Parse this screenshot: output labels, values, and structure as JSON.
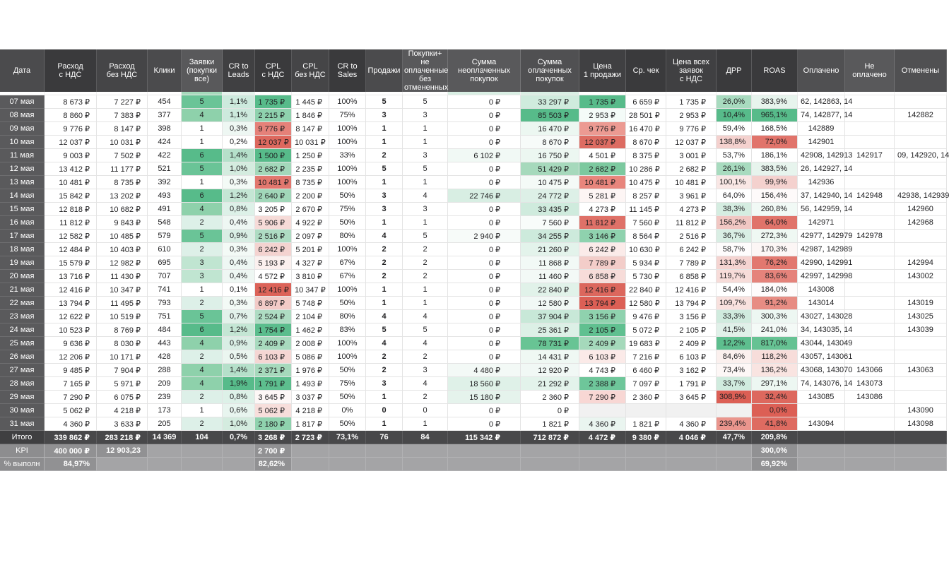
{
  "columns": [
    {
      "id": "date",
      "label": "Дата",
      "width": 63,
      "hbg": "#4b4b4d",
      "align": "c"
    },
    {
      "id": "exp_vat",
      "label": "Расход\nс НДС",
      "width": 74,
      "hbg": "#3a3a3c",
      "align": "r",
      "pad": "md"
    },
    {
      "id": "exp_novat",
      "label": "Расход\nбез НДС",
      "width": 72,
      "hbg": "#454547",
      "align": "r",
      "pad": "md"
    },
    {
      "id": "clicks",
      "label": "Клики",
      "width": 48,
      "hbg": "#4b4b4d",
      "align": "c"
    },
    {
      "id": "leads",
      "label": "Заявки\n(покупки\nвсе)",
      "width": 58,
      "hbg": "#59595b",
      "align": "c"
    },
    {
      "id": "cr_leads",
      "label": "CR to\nLeads",
      "width": 46,
      "hbg": "#404042",
      "align": "c"
    },
    {
      "id": "cpl_vat",
      "label": "CPL\nс НДС",
      "width": 52,
      "hbg": "#3a3a3c",
      "align": "r",
      "pad": "md"
    },
    {
      "id": "cpl_novat",
      "label": "CPL\nбез НДС",
      "width": 53,
      "hbg": "#454547",
      "align": "r",
      "pad": "md"
    },
    {
      "id": "cr_sales",
      "label": "CR to\nSales",
      "width": 52,
      "hbg": "#3a3a3c",
      "align": "c"
    },
    {
      "id": "sales",
      "label": "Продажи",
      "width": 52,
      "hbg": "#4b4b4d",
      "align": "c",
      "bold": true
    },
    {
      "id": "purchases",
      "label": "Покупки+ не\nоплаченные\nбез\nотмененных",
      "width": 64,
      "hbg": "#59595b",
      "align": "c"
    },
    {
      "id": "sum_unpaid",
      "label": "Сумма\nнеоплаченных\nпокупок",
      "width": 103,
      "hbg": "#59595b",
      "align": "r",
      "pad": "xl"
    },
    {
      "id": "sum_paid",
      "label": "Сумма\nоплаченных\nпокупок",
      "width": 83,
      "hbg": "#505052",
      "align": "r",
      "pad": "lg"
    },
    {
      "id": "price_one",
      "label": "Цена\n1 продажи",
      "width": 66,
      "hbg": "#404042",
      "align": "r",
      "pad": "lg"
    },
    {
      "id": "avg_check",
      "label": "Ср. чек",
      "width": 57,
      "hbg": "#3a3a3c",
      "align": "r",
      "pad": "md"
    },
    {
      "id": "price_all",
      "label": "Цена всех\nзаявок\nс НДС",
      "width": 71,
      "hbg": "#404042",
      "align": "r",
      "pad": "lg"
    },
    {
      "id": "drr",
      "label": "ДРР",
      "width": 50,
      "hbg": "#3a3a3c",
      "align": "r",
      "pad": "md"
    },
    {
      "id": "roas",
      "label": "ROAS",
      "width": 65,
      "hbg": "#3a3a3c",
      "align": "r",
      "pad": "lg"
    },
    {
      "id": "paid",
      "label": "Оплачено",
      "width": 67,
      "hbg": "#505052",
      "align": "c"
    },
    {
      "id": "not_paid",
      "label": "Не\nоплачено",
      "width": 70,
      "hbg": "#59595b",
      "align": "c"
    },
    {
      "id": "cancelled",
      "label": "Отменены",
      "width": 74,
      "hbg": "#505052",
      "align": "c"
    }
  ],
  "partial_row_bg": {
    "leads": "#a6dabc",
    "cr_leads": "#e4f3ec",
    "sum_unpaid": "#d9efe4",
    "sum_paid": "#d9efe4"
  },
  "rows": [
    [
      "07 мая",
      "8 673 ₽",
      "7 227 ₽",
      "454",
      [
        "5",
        "#6ac497"
      ],
      [
        "1,1%",
        "#cdeadd"
      ],
      [
        "1 735 ₽",
        "#57bb8a"
      ],
      "1 445 ₽",
      "100%",
      "5",
      "5",
      "0 ₽",
      [
        "33 297 ₽",
        "#cfebdd"
      ],
      [
        "1 735 ₽",
        "#57bb8a"
      ],
      "6 659 ₽",
      "1 735 ₽",
      [
        "26,0%",
        "#a8dbbf"
      ],
      [
        "383,9%",
        "#e7f4ed"
      ],
      "62, 142863, 14",
      "",
      ""
    ],
    [
      "08 мая",
      "8 860 ₽",
      "7 383 ₽",
      "377",
      [
        "4",
        "#8ed1ab"
      ],
      [
        "1,1%",
        "#cdeadd"
      ],
      [
        "2 215 ₽",
        "#8fd2ae"
      ],
      "1 846 ₽",
      "75%",
      "3",
      "3",
      "0 ₽",
      [
        "85 503 ₽",
        "#57bb8a"
      ],
      [
        "2 953 ₽",
        "#f4fbf8"
      ],
      "28 501 ₽",
      "2 953 ₽",
      [
        "10,4%",
        "#57bb8a"
      ],
      [
        "965,1%",
        "#57bb8a"
      ],
      "74, 142877, 14",
      "",
      "142882"
    ],
    [
      "09 мая",
      "9 776 ₽",
      "8 147 ₽",
      "398",
      "1",
      [
        "0,3%",
        "#eef7f3"
      ],
      [
        "9 776 ₽",
        "#e58179"
      ],
      "8 147 ₽",
      "100%",
      "1",
      "1",
      "0 ₽",
      [
        "16 470 ₽",
        "#ecf7f1"
      ],
      [
        "9 776 ₽",
        "#ec9a92"
      ],
      "16 470 ₽",
      "9 776 ₽",
      "59,4%",
      "168,5%",
      "142889",
      "",
      ""
    ],
    [
      "10 мая",
      "12 037 ₽",
      "10 031 ₽",
      "424",
      "1",
      "0,2%",
      [
        "12 037 ₽",
        "#dd685e"
      ],
      "10 031 ₽",
      "100%",
      "1",
      "1",
      "0 ₽",
      [
        "8 670 ₽",
        "#f7fbf9"
      ],
      [
        "12 037 ₽",
        "#dd6c62"
      ],
      "8 670 ₽",
      "12 037 ₽",
      [
        "138,8%",
        "#f4d1ce"
      ],
      [
        "72,0%",
        "#e1746b"
      ],
      "142901",
      "",
      ""
    ],
    [
      "11 мая",
      "9 003 ₽",
      "7 502 ₽",
      "422",
      [
        "6",
        "#57bb8a"
      ],
      [
        "1,4%",
        "#b5e0ca"
      ],
      [
        "1 500 ₽",
        "#57bb8a"
      ],
      "1 250 ₽",
      "33%",
      "2",
      "3",
      [
        "6 102 ₽",
        "#f1f9f5"
      ],
      [
        "16 750 ₽",
        "#ecf7f1"
      ],
      "4 501 ₽",
      "8 375 ₽",
      "3 001 ₽",
      "53,7%",
      "186,1%",
      "42908, 142913",
      "142917",
      "09, 142920, 14"
    ],
    [
      "12 мая",
      "13 412 ₽",
      "11 177 ₽",
      "521",
      [
        "5",
        "#6ac497"
      ],
      [
        "1,0%",
        "#d4ecdf"
      ],
      [
        "2 682 ₽",
        "#a3d8ba"
      ],
      "2 235 ₽",
      "100%",
      "5",
      "5",
      "0 ₽",
      [
        "51 429 ₽",
        "#a6d9bc"
      ],
      [
        "2 682 ₽",
        "#7cc99f"
      ],
      "10 286 ₽",
      "2 682 ₽",
      [
        "26,1%",
        "#a8dbbf"
      ],
      [
        "383,5%",
        "#e7f4ed"
      ],
      "26, 142927, 14",
      "",
      ""
    ],
    [
      "13 мая",
      "10 481 ₽",
      "8 735 ₽",
      "392",
      "1",
      [
        "0,3%",
        "#f3faf6"
      ],
      [
        "10 481 ₽",
        "#e2776e"
      ],
      "8 735 ₽",
      "100%",
      "1",
      "1",
      "0 ₽",
      [
        "10 475 ₽",
        "#f4faf7"
      ],
      [
        "10 481 ₽",
        "#e8857c"
      ],
      "10 475 ₽",
      "10 481 ₽",
      [
        "100,1%",
        "#f9e7e5"
      ],
      [
        "99,9%",
        "#f4d1ce"
      ],
      "142936",
      "",
      ""
    ],
    [
      "14 мая",
      "15 842 ₽",
      "13 202 ₽",
      "493",
      [
        "6",
        "#57bb8a"
      ],
      [
        "1,2%",
        "#c4e6d4"
      ],
      [
        "2 640 ₽",
        "#a1d7b9"
      ],
      "2 200 ₽",
      "50%",
      "3",
      "4",
      [
        "22 746 ₽",
        "#d8eee3"
      ],
      [
        "24 772 ₽",
        "#ddf0e7"
      ],
      [
        "5 281 ₽",
        "#fdf5f4"
      ],
      "8 257 ₽",
      "3 961 ₽",
      "64,0%",
      [
        "156,4%",
        "#fefafa"
      ],
      "37, 142940, 14",
      "142948",
      "42938, 142939"
    ],
    [
      "15 мая",
      "12 818 ₽",
      "10 682 ₽",
      "491",
      [
        "4",
        "#8ed1ab"
      ],
      [
        "0,8%",
        "#ddf1e8"
      ],
      "3 205 ₽",
      "2 670 ₽",
      "75%",
      "3",
      "3",
      "0 ₽",
      [
        "33 435 ₽",
        "#cfebdd"
      ],
      "4 273 ₽",
      "11 145 ₽",
      "4 273 ₽",
      [
        "38,3%",
        "#d5ede1"
      ],
      [
        "260,8%",
        "#f1f9f5"
      ],
      "56, 142959, 14",
      "",
      "142960"
    ],
    [
      "16 мая",
      "11 812 ₽",
      "9 843 ₽",
      "548",
      [
        "2",
        "#ddf0e8"
      ],
      [
        "0,4%",
        "#eef7f3"
      ],
      [
        "5 906 ₽",
        "#f6dbd8"
      ],
      "4 922 ₽",
      "50%",
      "1",
      "1",
      "0 ₽",
      [
        "7 560 ₽",
        "#f8fcfa"
      ],
      [
        "11 812 ₽",
        "#df7168"
      ],
      "7 560 ₽",
      "11 812 ₽",
      [
        "156,2%",
        "#f1c7c3"
      ],
      [
        "64,0%",
        "#e0736a"
      ],
      "142971",
      "",
      "142968"
    ],
    [
      "17 мая",
      "12 582 ₽",
      "10 485 ₽",
      "579",
      [
        "5",
        "#6ac497"
      ],
      [
        "0,9%",
        "#d9eee4"
      ],
      [
        "2 516 ₽",
        "#aedcc3"
      ],
      "2 097 ₽",
      "80%",
      "4",
      "5",
      [
        "2 940 ₽",
        "#f7fbf9"
      ],
      [
        "34 255 ₽",
        "#cdeadc"
      ],
      [
        "3 146 ₽",
        "#8fd2ae"
      ],
      "8 564 ₽",
      "2 516 ₽",
      [
        "36,7%",
        "#d9eee4"
      ],
      [
        "272,3%",
        "#eff8f3"
      ],
      "42977, 142979",
      "142978",
      ""
    ],
    [
      "18 мая",
      "12 484 ₽",
      "10 403 ₽",
      "610",
      [
        "2",
        "#ddf0e8"
      ],
      [
        "0,3%",
        "#f3faf6"
      ],
      [
        "6 242 ₽",
        "#f4d3d0"
      ],
      "5 201 ₽",
      "100%",
      "2",
      "2",
      "0 ₽",
      [
        "21 260 ₽",
        "#e3f3eb"
      ],
      [
        "6 242 ₽",
        "#fbebe9"
      ],
      "10 630 ₽",
      "6 242 ₽",
      [
        "58,7%",
        "#fefcfc"
      ],
      [
        "170,3%",
        "#fcf6f5"
      ],
      "42987, 142989",
      "",
      ""
    ],
    [
      "19 мая",
      "15 579 ₽",
      "12 982 ₽",
      "695",
      [
        "3",
        "#c0e5d1"
      ],
      [
        "0,4%",
        "#eef7f3"
      ],
      [
        "5 193 ₽",
        "#fbf0ee"
      ],
      "4 327 ₽",
      "67%",
      "2",
      "2",
      "0 ₽",
      [
        "11 868 ₽",
        "#f2f9f6"
      ],
      [
        "7 789 ₽",
        "#f3cdc9"
      ],
      "5 934 ₽",
      "7 789 ₽",
      [
        "131,3%",
        "#f5d4d1"
      ],
      [
        "76,2%",
        "#e2786f"
      ],
      "42990, 142991",
      "",
      "142994"
    ],
    [
      "20 мая",
      "13 716 ₽",
      "11 430 ₽",
      "707",
      [
        "3",
        "#c0e5d1"
      ],
      [
        "0,4%",
        "#eef7f3"
      ],
      "4 572 ₽",
      "3 810 ₽",
      "67%",
      "2",
      "2",
      "0 ₽",
      [
        "11 460 ₽",
        "#f3f9f6"
      ],
      [
        "6 858 ₽",
        "#f7dcd9"
      ],
      "5 730 ₽",
      "6 858 ₽",
      [
        "119,7%",
        "#f7dcd9"
      ],
      [
        "83,6%",
        "#e5837b"
      ],
      "42997, 142998",
      "",
      "143002"
    ],
    [
      "21 мая",
      "12 416 ₽",
      "10 347 ₽",
      "741",
      "1",
      "0,1%",
      [
        "12 416 ₽",
        "#dc6359"
      ],
      "10 347 ₽",
      "100%",
      "1",
      "1",
      "0 ₽",
      [
        "22 840 ₽",
        "#e1f2e9"
      ],
      [
        "12 416 ₽",
        "#dc675d"
      ],
      "22 840 ₽",
      "12 416 ₽",
      "54,4%",
      [
        "184,0%",
        "#fefbfb"
      ],
      "143008",
      "",
      ""
    ],
    [
      "22 мая",
      "13 794 ₽",
      "11 495 ₽",
      "793",
      [
        "2",
        "#ddf0e8"
      ],
      [
        "0,3%",
        "#f3faf6"
      ],
      [
        "6 897 ₽",
        "#f2cbc7"
      ],
      "5 748 ₽",
      "50%",
      "1",
      "1",
      "0 ₽",
      [
        "12 580 ₽",
        "#f1f8f5"
      ],
      [
        "13 794 ₽",
        "#dc5f55"
      ],
      "12 580 ₽",
      "13 794 ₽",
      [
        "109,7%",
        "#f8e1de"
      ],
      [
        "91,2%",
        "#e78c83"
      ],
      "143014",
      "",
      "143019"
    ],
    [
      "23 мая",
      "12 622 ₽",
      "10 519 ₽",
      "751",
      [
        "5",
        "#6ac497"
      ],
      [
        "0,7%",
        "#e2f2ea"
      ],
      [
        "2 524 ₽",
        "#aedcc3"
      ],
      "2 104 ₽",
      "80%",
      "4",
      "4",
      "0 ₽",
      [
        "37 904 ₽",
        "#c8e8d8"
      ],
      [
        "3 156 ₽",
        "#8fd2ae"
      ],
      "9 476 ₽",
      "3 156 ₽",
      [
        "33,3%",
        "#d0ebde"
      ],
      [
        "300,3%",
        "#edf7f2"
      ],
      "43027, 143028",
      "",
      "143025"
    ],
    [
      "24 мая",
      "10 523 ₽",
      "8 769 ₽",
      "484",
      [
        "6",
        "#57bb8a"
      ],
      [
        "1,2%",
        "#c4e6d4"
      ],
      [
        "1 754 ₽",
        "#5bbd8d"
      ],
      "1 462 ₽",
      "83%",
      "5",
      "5",
      "0 ₽",
      [
        "25 361 ₽",
        "#dcf0e6"
      ],
      [
        "2 105 ₽",
        "#60c090"
      ],
      "5 072 ₽",
      "2 105 ₽",
      [
        "41,5%",
        "#e0f1e9"
      ],
      [
        "241,0%",
        "#f4faf7"
      ],
      "34, 143035, 14",
      "",
      "143039"
    ],
    [
      "25 мая",
      "9 636 ₽",
      "8 030 ₽",
      "443",
      [
        "4",
        "#8ed1ab"
      ],
      [
        "0,9%",
        "#d9eee4"
      ],
      [
        "2 409 ₽",
        "#a8dabe"
      ],
      "2 008 ₽",
      "100%",
      "4",
      "4",
      "0 ₽",
      [
        "78 731 ₽",
        "#68c494"
      ],
      [
        "2 409 ₽",
        "#a5d9bb"
      ],
      "19 683 ₽",
      "2 409 ₽",
      [
        "12,2%",
        "#5dbe8e"
      ],
      [
        "817,0%",
        "#66c293"
      ],
      "43044, 143049",
      "",
      ""
    ],
    [
      "26 мая",
      "12 206 ₽",
      "10 171 ₽",
      "428",
      [
        "2",
        "#ddf0e8"
      ],
      [
        "0,5%",
        "#ebf6f0"
      ],
      [
        "6 103 ₽",
        "#f5d6d3"
      ],
      "5 086 ₽",
      "100%",
      "2",
      "2",
      "0 ₽",
      [
        "14 431 ₽",
        "#eff8f3"
      ],
      [
        "6 103 ₽",
        "#fbeae8"
      ],
      "7 216 ₽",
      "6 103 ₽",
      [
        "84,6%",
        "#fbf0ee"
      ],
      [
        "118,2%",
        "#f7ddda"
      ],
      "43057, 143061",
      "",
      ""
    ],
    [
      "27 мая",
      "9 485 ₽",
      "7 904 ₽",
      "288",
      [
        "4",
        "#8ed1ab"
      ],
      [
        "1,4%",
        "#b5e0ca"
      ],
      [
        "2 371 ₽",
        "#a6d9bc"
      ],
      "1 976 ₽",
      "50%",
      "2",
      "3",
      [
        "4 480 ₽",
        "#f3f9f6"
      ],
      [
        "12 920 ₽",
        "#f1f8f5"
      ],
      "4 743 ₽",
      "6 460 ₽",
      "3 162 ₽",
      [
        "73,4%",
        "#fdf7f6"
      ],
      [
        "136,2%",
        "#f9e4e1"
      ],
      "43068, 143070",
      "143066",
      "143063"
    ],
    [
      "28 мая",
      "7 165 ₽",
      "5 971 ₽",
      "209",
      [
        "4",
        "#8ed1ab"
      ],
      [
        "1,9%",
        "#57bb8a"
      ],
      [
        "1 791 ₽",
        "#5dbe8e"
      ],
      "1 493 ₽",
      "75%",
      "3",
      "4",
      [
        "18 560 ₽",
        "#dff1e8"
      ],
      [
        "21 292 ₽",
        "#e3f3eb"
      ],
      [
        "2 388 ₽",
        "#6ec69a"
      ],
      "7 097 ₽",
      "1 791 ₽",
      [
        "33,7%",
        "#d0ebde"
      ],
      [
        "297,1%",
        "#edf7f2"
      ],
      "74, 143076, 14",
      "143073",
      ""
    ],
    [
      "29 мая",
      "7 290 ₽",
      "6 075 ₽",
      "239",
      [
        "2",
        "#ddf0e8"
      ],
      [
        "0,8%",
        "#ddf1e8"
      ],
      [
        "3 645 ₽",
        "#fdf7f6"
      ],
      "3 037 ₽",
      "50%",
      "1",
      "2",
      [
        "15 180 ₽",
        "#e5f3ec"
      ],
      "2 360 ₽",
      [
        "7 290 ₽",
        "#f8d7d4"
      ],
      "2 360 ₽",
      "3 645 ₽",
      [
        "308,9%",
        "#dc5f55"
      ],
      [
        "32,4%",
        "#dd685e"
      ],
      "143085",
      "143086",
      ""
    ],
    [
      "30 мая",
      "5 062 ₽",
      "4 218 ₽",
      "173",
      "1",
      [
        "0,6%",
        "#e8f5ef"
      ],
      [
        "5 062 ₽",
        "#f7dedb"
      ],
      "4 218 ₽",
      "0%",
      "0",
      "0",
      "0 ₽",
      "0 ₽",
      [
        "",
        "#f1f1f1"
      ],
      [
        "",
        "#f1f1f1"
      ],
      [
        "",
        "#f1f1f1"
      ],
      [
        "",
        "#f1f1f1"
      ],
      [
        "0,0%",
        "#dc5f55"
      ],
      "",
      "",
      "143090"
    ],
    [
      "31 мая",
      "4 360 ₽",
      "3 633 ₽",
      "205",
      [
        "2",
        "#ddf0e8"
      ],
      [
        "1,0%",
        "#d4ecdf"
      ],
      [
        "2 180 ₽",
        "#8fd2ae"
      ],
      "1 817 ₽",
      "50%",
      "1",
      "1",
      "0 ₽",
      "1 821 ₽",
      [
        "4 360 ₽",
        "#eaf5f0"
      ],
      "1 821 ₽",
      "4 360 ₽",
      [
        "239,4%",
        "#ea958d"
      ],
      [
        "41,8%",
        "#de6b61"
      ],
      "143094",
      "",
      "143098"
    ]
  ],
  "footer_rows": [
    {
      "id": "total",
      "label": "Итого",
      "cls": "f-total",
      "cells": [
        "339 862 ₽",
        "283 218 ₽",
        "14 369",
        "104",
        "0,7%",
        "3 268 ₽",
        "2 723 ₽",
        "73,1%",
        "76",
        "84",
        "115 342 ₽",
        "712 872 ₽",
        "4 472 ₽",
        "9 380 ₽",
        "4 046 ₽",
        "47,7%",
        "209,8%",
        "",
        "",
        ""
      ]
    },
    {
      "id": "kpi",
      "label": "KPI",
      "cls": "f-gray",
      "cells": [
        "400 000 ₽",
        "12 903,23",
        "",
        "",
        "",
        "2 700 ₽",
        "",
        "",
        "",
        "",
        "",
        "",
        "",
        "",
        "",
        "",
        "300,0%",
        "",
        "",
        ""
      ]
    },
    {
      "id": "pct_done",
      "label": "% выполн",
      "cls": "f-gray",
      "cells": [
        "84,97%",
        "",
        "",
        "",
        "",
        "82,62%",
        "",
        "",
        "",
        "",
        "",
        "",
        "",
        "",
        "",
        "",
        "69,92%",
        "",
        "",
        ""
      ]
    }
  ]
}
